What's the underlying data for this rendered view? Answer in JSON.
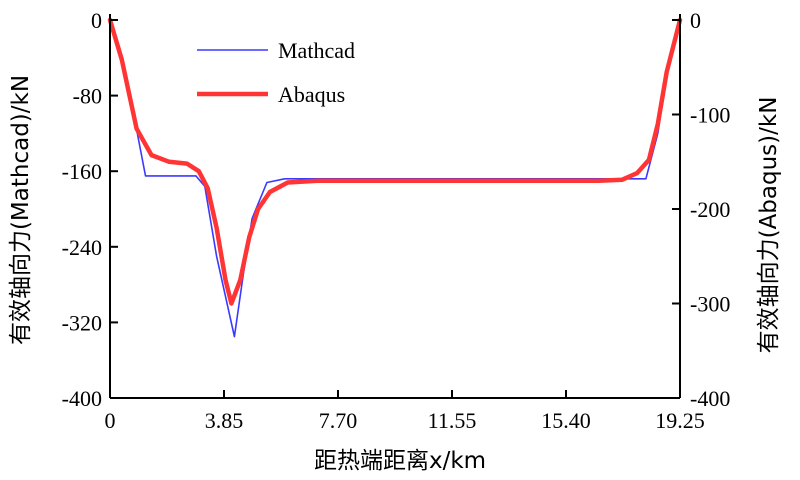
{
  "chart_data": {
    "type": "line",
    "xlabel": "距热端距离x/km",
    "ylabel_left": "有效轴向力(Mathcad)/kN",
    "ylabel_right": "有效轴向力(Abaqus)/kN",
    "x_ticks": [
      "0",
      "3.85",
      "7.70",
      "11.55",
      "15.40",
      "19.25"
    ],
    "x_tick_values": [
      0,
      3.85,
      7.7,
      11.55,
      15.4,
      19.25
    ],
    "y_left_ticks": [
      "0",
      "-80",
      "-160",
      "-240",
      "-320",
      "-400"
    ],
    "y_left_tick_values": [
      0,
      -80,
      -160,
      -240,
      -320,
      -400
    ],
    "y_right_ticks": [
      "0",
      "-100",
      "-200",
      "-300",
      "-400"
    ],
    "y_right_tick_values": [
      0,
      -100,
      -200,
      -300,
      -400
    ],
    "xlim": [
      0,
      19.25
    ],
    "ylim_left": [
      -400,
      0
    ],
    "ylim_right": [
      -400,
      0
    ],
    "legend_position": "top-left",
    "grid": false,
    "series": [
      {
        "name": "Mathcad",
        "axis": "left",
        "color": "#3a3aff",
        "x": [
          0,
          0.4,
          0.8,
          1.2,
          2.9,
          3.2,
          3.6,
          4.2,
          4.5,
          4.8,
          5.3,
          5.9,
          6.5,
          10,
          15,
          17.5,
          18.1,
          18.5,
          18.8,
          19.25
        ],
        "y": [
          0,
          -43,
          -100,
          -165,
          -165,
          -176,
          -250,
          -335,
          -270,
          -210,
          -172,
          -168,
          -168,
          -168,
          -168,
          -168,
          -168,
          -120,
          -60,
          0
        ]
      },
      {
        "name": "Abaqus",
        "axis": "right",
        "color": "#ff3535",
        "x": [
          0,
          0.4,
          0.9,
          1.4,
          2.0,
          2.6,
          3.0,
          3.3,
          3.6,
          3.9,
          4.1,
          4.4,
          4.7,
          5.0,
          5.4,
          6.0,
          7.0,
          10,
          13,
          15,
          16.5,
          17.3,
          17.8,
          18.2,
          18.5,
          18.8,
          19.25
        ],
        "y": [
          0,
          -42,
          -115,
          -143,
          -150,
          -152,
          -160,
          -178,
          -220,
          -275,
          -300,
          -275,
          -230,
          -200,
          -182,
          -172,
          -170,
          -170,
          -170,
          -170,
          -170,
          -169,
          -162,
          -148,
          -110,
          -55,
          0
        ]
      }
    ]
  }
}
